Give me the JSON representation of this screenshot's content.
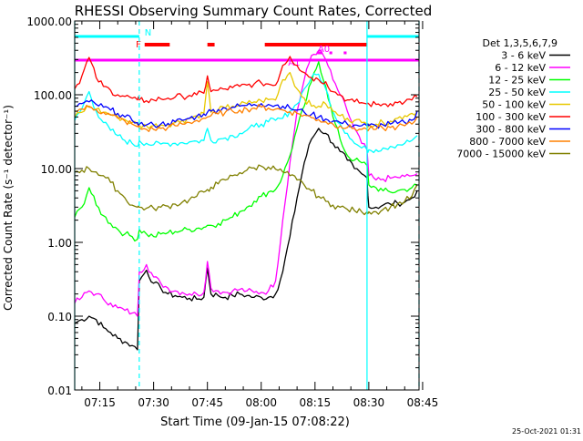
{
  "chart_data": {
    "type": "line",
    "title": "RHESSI Observing Summary Count Rates, Corrected",
    "xlabel": "Start Time (09-Jan-15 07:08:22)",
    "ylabel": "Corrected Count Rate (s⁻¹ detector⁻¹)",
    "yscale": "log",
    "ylim": [
      0.01,
      1000
    ],
    "xlim_min": [
      8,
      104
    ],
    "x_unit": "minutes after 07:00 UT",
    "y_ticks": [
      {
        "value": 1000,
        "label": "1000.00"
      },
      {
        "value": 100,
        "label": "100.00"
      },
      {
        "value": 10,
        "label": "10.00"
      },
      {
        "value": 1,
        "label": "1.00"
      },
      {
        "value": 0.1,
        "label": "0.10"
      },
      {
        "value": 0.01,
        "label": "0.01"
      }
    ],
    "x_ticks": [
      {
        "value": 15,
        "label": "07:15"
      },
      {
        "value": 30,
        "label": "07:30"
      },
      {
        "value": 45,
        "label": "07:45"
      },
      {
        "value": 60,
        "label": "08:00"
      },
      {
        "value": 75,
        "label": "08:15"
      },
      {
        "value": 90,
        "label": "08:30"
      },
      {
        "value": 105,
        "label": "08:45"
      }
    ],
    "legend": {
      "title": "Det 1,3,5,6,7,9",
      "position": "right"
    },
    "x": [
      8,
      10,
      12,
      14,
      16,
      18,
      20,
      22,
      24,
      25.5,
      26,
      28,
      30,
      32,
      34,
      36,
      38,
      40,
      42,
      44,
      45,
      46,
      48,
      50,
      52,
      54,
      56,
      58,
      60,
      62,
      64,
      66,
      68,
      70,
      72,
      74,
      76,
      78,
      80,
      82,
      84,
      86,
      88,
      89.5,
      90,
      92,
      94,
      96,
      98,
      100,
      102,
      103.5
    ],
    "series": [
      {
        "name": "3 - 6 keV",
        "color": "#000000",
        "values": [
          0.08,
          0.09,
          0.1,
          0.09,
          0.07,
          0.06,
          0.05,
          0.045,
          0.04,
          0.035,
          0.3,
          0.42,
          0.28,
          0.24,
          0.2,
          0.19,
          0.18,
          0.175,
          0.17,
          0.18,
          0.45,
          0.2,
          0.19,
          0.18,
          0.19,
          0.2,
          0.19,
          0.18,
          0.18,
          0.18,
          0.2,
          0.4,
          1.2,
          4,
          12,
          25,
          35,
          30,
          22,
          17,
          13,
          10,
          8.5,
          7.5,
          3,
          3,
          3.2,
          3.3,
          3.4,
          3.5,
          4,
          5
        ]
      },
      {
        "name": "6 - 12 keV",
        "color": "#ff00ff",
        "values": [
          0.15,
          0.18,
          0.22,
          0.2,
          0.17,
          0.15,
          0.13,
          0.12,
          0.11,
          0.1,
          0.4,
          0.5,
          0.34,
          0.28,
          0.24,
          0.22,
          0.21,
          0.2,
          0.2,
          0.21,
          0.55,
          0.24,
          0.22,
          0.21,
          0.22,
          0.23,
          0.22,
          0.21,
          0.21,
          0.22,
          0.3,
          2,
          12,
          60,
          160,
          340,
          400,
          300,
          160,
          100,
          60,
          35,
          22,
          18,
          8,
          7,
          7.2,
          7.4,
          7.6,
          7.8,
          8,
          8.5
        ]
      },
      {
        "name": "12 - 25 keV",
        "color": "#00ff00",
        "values": [
          2.2,
          3,
          5.5,
          3.2,
          2.3,
          1.8,
          1.5,
          1.3,
          1.2,
          1.1,
          1.5,
          1.3,
          1.2,
          1.3,
          1.35,
          1.4,
          1.45,
          1.5,
          1.55,
          1.6,
          1.7,
          1.7,
          1.8,
          2,
          2.2,
          2.6,
          3,
          3.6,
          4.2,
          4.8,
          5.2,
          8,
          15,
          35,
          70,
          150,
          280,
          130,
          50,
          25,
          15,
          13,
          12,
          11,
          6,
          5.5,
          5,
          4.8,
          5,
          5.2,
          5.5,
          6
        ]
      },
      {
        "name": "25 - 50 keV",
        "color": "#00ffff",
        "values": [
          45,
          65,
          110,
          60,
          42,
          33,
          28,
          24,
          22,
          20,
          24,
          22,
          21,
          21.5,
          22,
          22,
          22.5,
          23,
          23.5,
          24,
          35,
          24,
          25,
          26,
          28,
          30,
          33,
          37,
          40,
          43,
          45,
          48,
          60,
          75,
          120,
          170,
          190,
          120,
          60,
          40,
          30,
          22,
          19,
          18,
          18,
          18,
          19,
          20,
          21,
          22,
          24,
          28
        ]
      },
      {
        "name": "50 - 100 keV",
        "color": "#e8c800",
        "values": [
          50,
          58,
          70,
          64,
          58,
          54,
          50,
          46,
          42,
          40,
          38,
          38,
          38,
          39,
          40,
          42,
          45,
          48,
          52,
          56,
          150,
          58,
          62,
          66,
          70,
          73,
          76,
          80,
          83,
          86,
          85,
          160,
          200,
          120,
          90,
          70,
          70,
          75,
          60,
          52,
          48,
          45,
          42,
          40,
          40,
          40,
          42,
          44,
          48,
          52,
          56,
          60
        ]
      },
      {
        "name": "100 - 300 keV",
        "color": "#ff0000",
        "values": [
          120,
          180,
          320,
          170,
          130,
          115,
          100,
          95,
          90,
          85,
          85,
          83,
          85,
          88,
          90,
          93,
          95,
          98,
          100,
          105,
          180,
          110,
          115,
          120,
          125,
          130,
          135,
          140,
          145,
          140,
          135,
          250,
          330,
          250,
          200,
          170,
          160,
          150,
          110,
          100,
          85,
          80,
          78,
          75,
          75,
          74,
          75,
          76,
          78,
          80,
          85,
          95
        ]
      },
      {
        "name": "300 - 800 keV",
        "color": "#0000ff",
        "values": [
          70,
          76,
          80,
          74,
          68,
          62,
          56,
          50,
          45,
          42,
          40,
          39,
          39,
          40,
          41,
          43,
          45,
          48,
          51,
          55,
          58,
          60,
          63,
          66,
          68,
          70,
          72,
          74,
          76,
          74,
          72,
          70,
          66,
          62,
          58,
          54,
          50,
          47,
          44,
          42,
          40,
          39,
          38,
          38,
          38,
          38,
          39,
          40,
          41,
          42,
          45,
          60
        ]
      },
      {
        "name": "800 - 7000 keV",
        "color": "#ff8000",
        "values": [
          60,
          64,
          68,
          63,
          58,
          53,
          48,
          44,
          40,
          37,
          35,
          34,
          34,
          35,
          36,
          38,
          40,
          42,
          45,
          48,
          50,
          52,
          55,
          58,
          60,
          62,
          64,
          66,
          68,
          66,
          64,
          62,
          59,
          56,
          53,
          49,
          46,
          43,
          40,
          38,
          36,
          35,
          34,
          34,
          34,
          34,
          35,
          36,
          37,
          38,
          40,
          50
        ]
      },
      {
        "name": "7000 - 15000 keV",
        "color": "#808000",
        "values": [
          9,
          9.5,
          10,
          9,
          8,
          6.5,
          5,
          4,
          3.2,
          3,
          3,
          2.9,
          2.9,
          3,
          3.1,
          3.3,
          3.5,
          3.8,
          4.2,
          4.8,
          5.2,
          5.6,
          6.2,
          7,
          8,
          8.8,
          9.5,
          10.2,
          10.8,
          10.5,
          9.8,
          9,
          8,
          7,
          6,
          5,
          4.2,
          3.6,
          3.2,
          3,
          2.8,
          2.7,
          2.6,
          2.6,
          2.6,
          2.6,
          2.8,
          3,
          3.3,
          3.6,
          4.2,
          6
        ]
      }
    ],
    "annotations": [
      {
        "label": "N",
        "color": "#00ffff",
        "type": "state-bar",
        "segments": [
          [
            8,
            26
          ],
          [
            89.5,
            104
          ]
        ]
      },
      {
        "label": "F",
        "color": "#ff0000",
        "type": "state-bar",
        "segments": [
          [
            27.5,
            34.5
          ],
          [
            45,
            47
          ],
          [
            61,
            89.5
          ]
        ]
      },
      {
        "label": "A0",
        "color": "#ff00ff",
        "type": "state-bar",
        "segments": [
          [
            75.5,
            77
          ],
          [
            79,
            79.8
          ],
          [
            83,
            83.8
          ]
        ]
      },
      {
        "label": "A1",
        "color": "#ff00ff",
        "type": "state-bar",
        "segments": [
          [
            8,
            104
          ]
        ]
      }
    ],
    "vertical_markers": [
      {
        "time": 8,
        "color": "#00ffff",
        "style": "solid"
      },
      {
        "time": 26,
        "color": "#00ffff",
        "style": "dashed"
      },
      {
        "time": 89.5,
        "color": "#00ffff",
        "style": "solid"
      },
      {
        "time": 104,
        "color": "#00ffff",
        "style": "dashed"
      }
    ]
  },
  "footer": {
    "date_stamp": "25-Oct-2021 01:31"
  }
}
